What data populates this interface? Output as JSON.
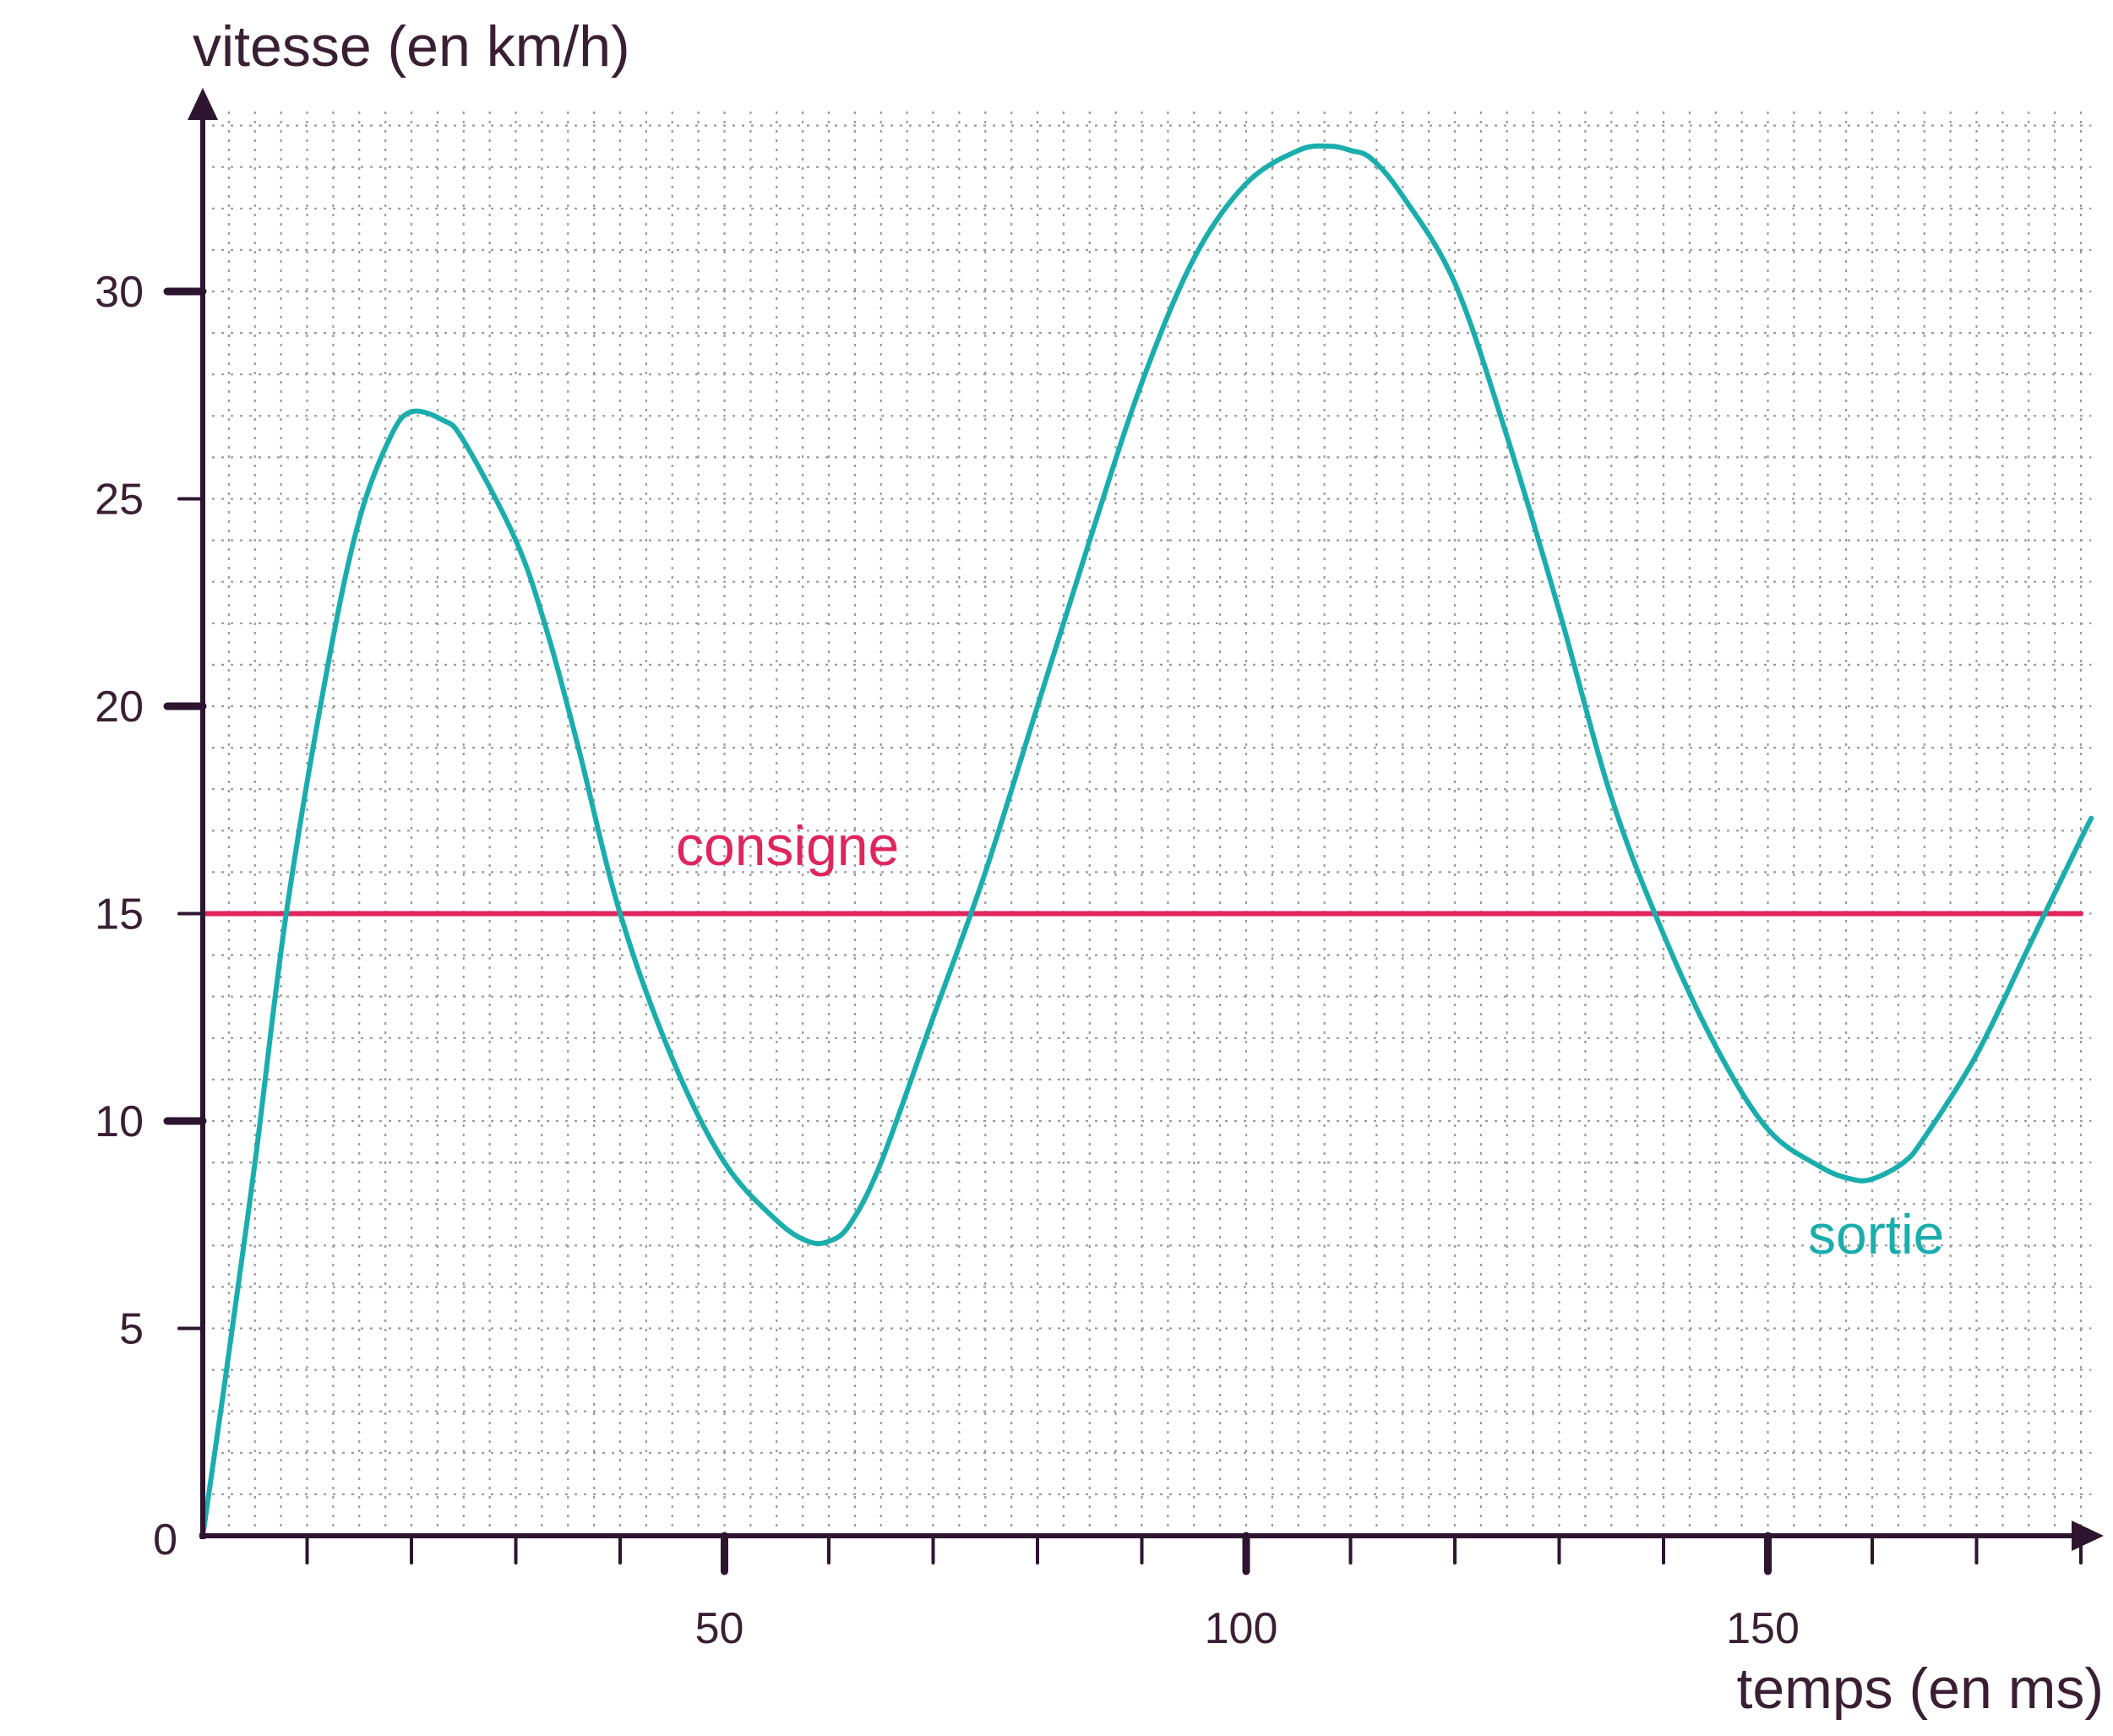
{
  "chart_data": {
    "type": "line",
    "ylabel": "vitesse (en km/h)",
    "xlabel": "temps (en ms)",
    "origin_label": "0",
    "xlim": [
      0,
      181
    ],
    "ylim": [
      0,
      34.5
    ],
    "x_ticks": [
      {
        "value": 50,
        "label": "50"
      },
      {
        "value": 100,
        "label": "100"
      },
      {
        "value": 150,
        "label": "150"
      }
    ],
    "y_ticks": [
      {
        "value": 5,
        "label": "5"
      },
      {
        "value": 10,
        "label": "10"
      },
      {
        "value": 15,
        "label": "15"
      },
      {
        "value": 20,
        "label": "20"
      },
      {
        "value": 25,
        "label": "25"
      },
      {
        "value": 30,
        "label": "30"
      }
    ],
    "grid": "dotted",
    "series": [
      {
        "name": "consigne",
        "color": "#e0245e",
        "x": [
          0,
          180
        ],
        "y": [
          15,
          15
        ]
      },
      {
        "name": "sortie",
        "color": "#1aadad",
        "x": [
          0,
          2,
          5,
          8,
          12,
          15,
          18,
          20,
          23,
          25,
          30,
          33,
          36,
          40,
          45,
          50,
          55,
          58,
          60,
          62,
          65,
          70,
          75,
          80,
          85,
          90,
          95,
          100,
          105,
          108,
          110,
          112,
          115,
          120,
          125,
          130,
          135,
          140,
          145,
          150,
          155,
          158,
          160,
          163,
          165,
          170,
          175,
          180,
          181
        ],
        "y": [
          0,
          3.5,
          9,
          15,
          21,
          24.5,
          26.5,
          27.1,
          26.9,
          26.4,
          24,
          21.8,
          19,
          15,
          11.5,
          9,
          7.6,
          7.1,
          7.1,
          7.5,
          9,
          12.5,
          16,
          20,
          24,
          27.8,
          30.8,
          32.6,
          33.4,
          33.5,
          33.4,
          33.2,
          32.3,
          30.2,
          26.5,
          22.3,
          17.8,
          14.5,
          11.8,
          9.8,
          8.9,
          8.6,
          8.6,
          9.0,
          9.6,
          11.6,
          14.2,
          16.8,
          17.3
        ]
      }
    ]
  }
}
